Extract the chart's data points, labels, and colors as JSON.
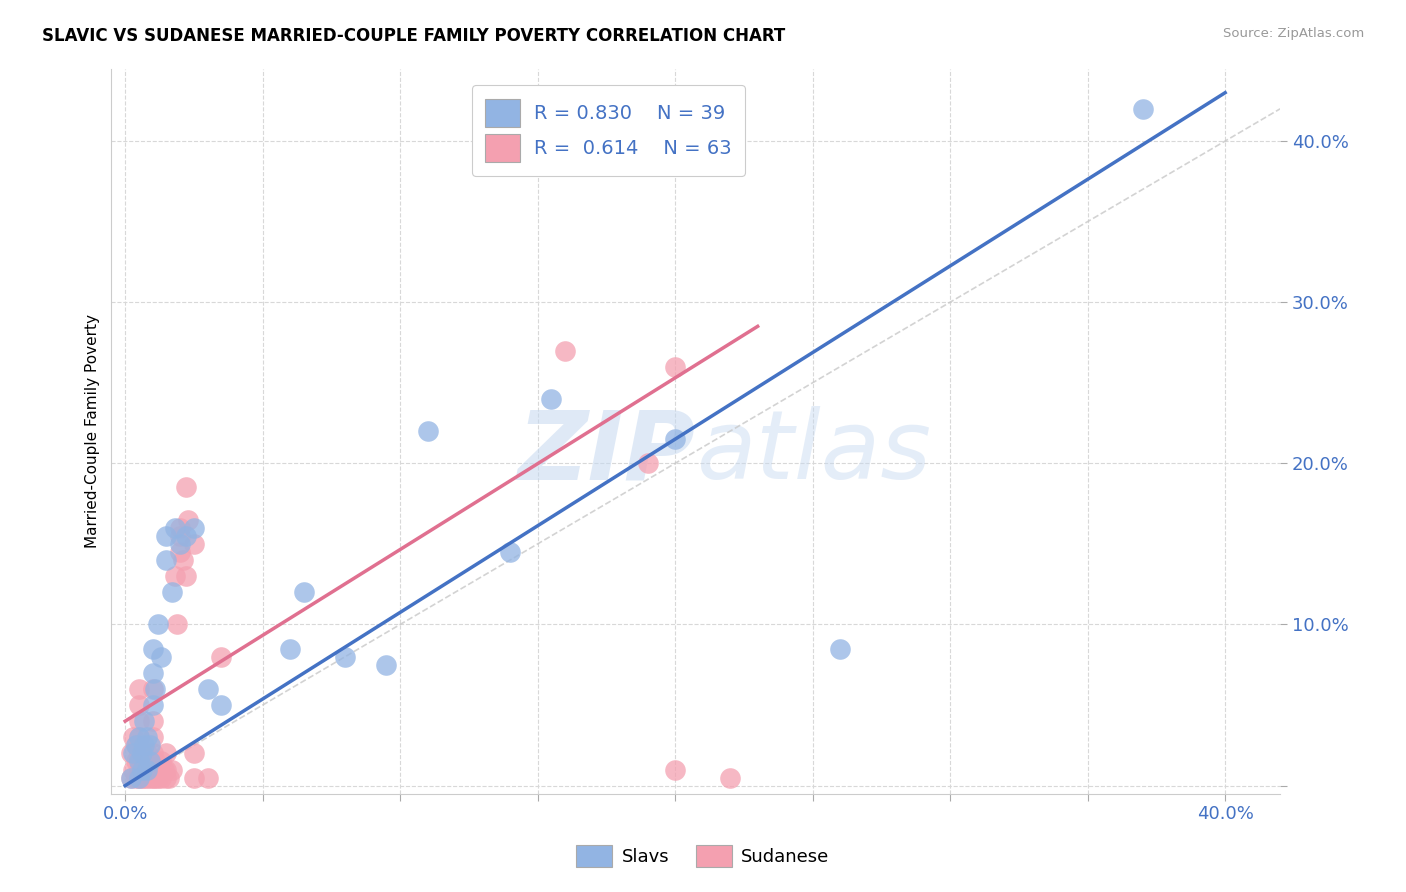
{
  "title": "SLAVIC VS SUDANESE MARRIED-COUPLE FAMILY POVERTY CORRELATION CHART",
  "source": "Source: ZipAtlas.com",
  "ylabel": "Married-Couple Family Poverty",
  "xlim": [
    -0.005,
    0.42
  ],
  "ylim": [
    -0.005,
    0.445
  ],
  "slavs_color": "#92b4e3",
  "sudanese_color": "#f4a0b0",
  "slavs_line_color": "#4472c4",
  "sudanese_line_color": "#e07090",
  "ref_line_color": "#c8c8c8",
  "legend_text_color": "#4472c4",
  "R_slavs": 0.83,
  "N_slavs": 39,
  "R_sudanese": 0.614,
  "N_sudanese": 63,
  "slavs_x": [
    0.002,
    0.003,
    0.004,
    0.005,
    0.005,
    0.005,
    0.006,
    0.006,
    0.007,
    0.007,
    0.008,
    0.008,
    0.009,
    0.009,
    0.01,
    0.01,
    0.01,
    0.011,
    0.012,
    0.013,
    0.015,
    0.015,
    0.017,
    0.018,
    0.02,
    0.022,
    0.025,
    0.03,
    0.035,
    0.06,
    0.065,
    0.08,
    0.095,
    0.11,
    0.14,
    0.155,
    0.2,
    0.26,
    0.37
  ],
  "slavs_y": [
    0.005,
    0.02,
    0.025,
    0.005,
    0.015,
    0.03,
    0.01,
    0.02,
    0.025,
    0.04,
    0.01,
    0.03,
    0.015,
    0.025,
    0.05,
    0.07,
    0.085,
    0.06,
    0.1,
    0.08,
    0.14,
    0.155,
    0.12,
    0.16,
    0.15,
    0.155,
    0.16,
    0.06,
    0.05,
    0.085,
    0.12,
    0.08,
    0.075,
    0.22,
    0.145,
    0.24,
    0.215,
    0.085,
    0.42
  ],
  "sudanese_x": [
    0.002,
    0.002,
    0.003,
    0.003,
    0.004,
    0.004,
    0.004,
    0.005,
    0.005,
    0.005,
    0.005,
    0.005,
    0.005,
    0.005,
    0.005,
    0.006,
    0.006,
    0.006,
    0.007,
    0.007,
    0.007,
    0.008,
    0.008,
    0.008,
    0.009,
    0.009,
    0.01,
    0.01,
    0.01,
    0.01,
    0.01,
    0.01,
    0.011,
    0.011,
    0.012,
    0.012,
    0.013,
    0.013,
    0.014,
    0.015,
    0.015,
    0.015,
    0.016,
    0.017,
    0.018,
    0.019,
    0.02,
    0.02,
    0.02,
    0.021,
    0.022,
    0.022,
    0.023,
    0.025,
    0.025,
    0.025,
    0.03,
    0.035,
    0.16,
    0.19,
    0.2,
    0.22,
    0.2
  ],
  "sudanese_y": [
    0.005,
    0.02,
    0.01,
    0.03,
    0.005,
    0.015,
    0.025,
    0.005,
    0.01,
    0.015,
    0.02,
    0.03,
    0.04,
    0.05,
    0.06,
    0.005,
    0.01,
    0.02,
    0.005,
    0.01,
    0.015,
    0.005,
    0.01,
    0.02,
    0.005,
    0.015,
    0.005,
    0.01,
    0.02,
    0.03,
    0.04,
    0.06,
    0.005,
    0.015,
    0.005,
    0.01,
    0.005,
    0.015,
    0.01,
    0.005,
    0.01,
    0.02,
    0.005,
    0.01,
    0.13,
    0.1,
    0.155,
    0.145,
    0.16,
    0.14,
    0.13,
    0.185,
    0.165,
    0.15,
    0.005,
    0.02,
    0.005,
    0.08,
    0.27,
    0.2,
    0.26,
    0.005,
    0.01
  ],
  "slavs_line_x": [
    0.0,
    0.4
  ],
  "slavs_line_y": [
    0.0,
    0.43
  ],
  "sudanese_line_x": [
    0.0,
    0.23
  ],
  "sudanese_line_y": [
    0.04,
    0.285
  ],
  "watermark_zip": "ZIP",
  "watermark_atlas": "atlas",
  "background_color": "#ffffff",
  "grid_color": "#d8d8d8",
  "tick_color": "#4472c4",
  "title_fontsize": 12,
  "axis_fontsize": 13
}
